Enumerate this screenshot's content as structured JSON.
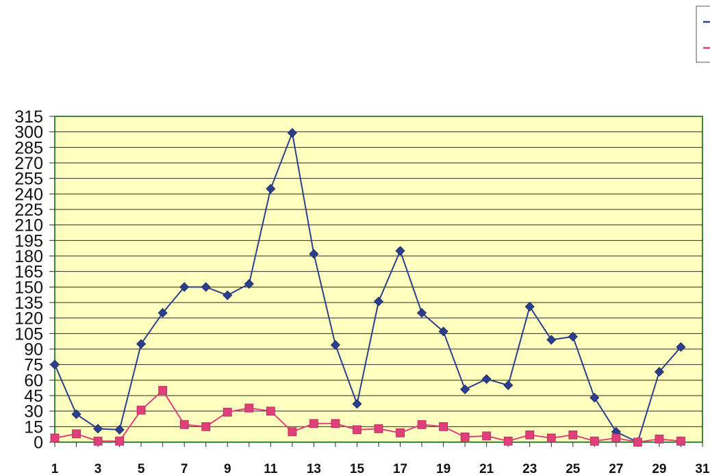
{
  "chart_data": {
    "type": "line",
    "x": [
      1,
      2,
      3,
      4,
      5,
      6,
      7,
      8,
      9,
      10,
      11,
      12,
      13,
      14,
      15,
      16,
      17,
      18,
      19,
      20,
      21,
      22,
      23,
      24,
      25,
      26,
      27,
      28,
      29,
      30
    ],
    "series": [
      {
        "marker": "diamond",
        "color": "#2b3f8c",
        "values": [
          75,
          27,
          13,
          12,
          95,
          125,
          150,
          150,
          142,
          153,
          245,
          299,
          182,
          94,
          37,
          136,
          185,
          125,
          107,
          51,
          61,
          55,
          131,
          99,
          102,
          43,
          10,
          0,
          68,
          92
        ]
      },
      {
        "marker": "square",
        "color": "#e0407a",
        "values": [
          4,
          8,
          1,
          1,
          31,
          50,
          17,
          15,
          29,
          33,
          30,
          10,
          18,
          18,
          12,
          13,
          9,
          17,
          15,
          5,
          6,
          1,
          7,
          4,
          7,
          1,
          4,
          0,
          3,
          1
        ]
      }
    ],
    "xticks": [
      "1",
      "3",
      "5",
      "7",
      "9",
      "11",
      "13",
      "15",
      "17",
      "19",
      "21",
      "23",
      "25",
      "27",
      "29",
      "31"
    ],
    "yticks": [
      "0",
      "15",
      "30",
      "45",
      "60",
      "75",
      "90",
      "105",
      "120",
      "135",
      "150",
      "165",
      "180",
      "195",
      "210",
      "225",
      "240",
      "255",
      "270",
      "285",
      "300",
      "315"
    ],
    "ylim": [
      0,
      315
    ],
    "xlim": [
      1,
      31
    ],
    "grid": true,
    "plot_background": "#ffffc0",
    "plot_border_color": "#3a8a3a",
    "legend_placement": "top-right (cropped)"
  }
}
